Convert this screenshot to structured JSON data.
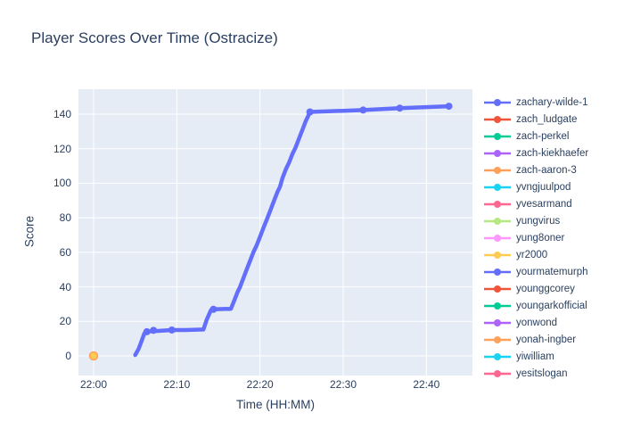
{
  "title": "Player Scores Over Time (Ostracize)",
  "colors": {
    "background": "#ffffff",
    "plot_background": "#E5ECF6",
    "gridline": "#ffffff",
    "text": "#2a3f5f",
    "primary_series": "#636EFA"
  },
  "chart_data": {
    "type": "line",
    "title": "Player Scores Over Time (Ostracize)",
    "xlabel": "Time (HH:MM)",
    "ylabel": "Score",
    "x_unit": "minutes after 22:00",
    "x_ticks": [
      {
        "minutes": 0,
        "label": "22:00"
      },
      {
        "minutes": 10,
        "label": "22:10"
      },
      {
        "minutes": 20,
        "label": "22:20"
      },
      {
        "minutes": 30,
        "label": "22:30"
      },
      {
        "minutes": 40,
        "label": "22:40"
      }
    ],
    "y_ticks": [
      0,
      20,
      40,
      60,
      80,
      100,
      120,
      140
    ],
    "xlim_minutes": [
      -1.8,
      45.5
    ],
    "ylim": [
      -11.4,
      154.4
    ],
    "grid": true,
    "legend_position": "right",
    "players": [
      {
        "label": "zachary-wilde-1",
        "color": "#636EFA",
        "points": [
          [
            5.0,
            0.5
          ],
          [
            5.4,
            4
          ],
          [
            5.8,
            9
          ],
          [
            6.1,
            13
          ],
          [
            6.4,
            14
          ],
          [
            7.0,
            14.3
          ],
          [
            7.2,
            14.8
          ],
          [
            7.5,
            14.4
          ],
          [
            9.4,
            15
          ],
          [
            11.0,
            15
          ],
          [
            13.2,
            15.3
          ],
          [
            13.6,
            21
          ],
          [
            14.1,
            26.5
          ],
          [
            14.4,
            27
          ],
          [
            16.5,
            27.3
          ],
          [
            16.9,
            32
          ],
          [
            17.3,
            37
          ],
          [
            17.6,
            40
          ],
          [
            18.0,
            45
          ],
          [
            18.4,
            50
          ],
          [
            18.8,
            55
          ],
          [
            19.2,
            60
          ],
          [
            19.6,
            64
          ],
          [
            20.0,
            69
          ],
          [
            20.4,
            74
          ],
          [
            20.9,
            80
          ],
          [
            21.3,
            85
          ],
          [
            21.7,
            90
          ],
          [
            22.1,
            95
          ],
          [
            22.4,
            98
          ],
          [
            22.7,
            103
          ],
          [
            23.1,
            108
          ],
          [
            23.5,
            112
          ],
          [
            23.9,
            117
          ],
          [
            24.3,
            121
          ],
          [
            24.7,
            126
          ],
          [
            25.1,
            131
          ],
          [
            25.5,
            136
          ],
          [
            25.8,
            139
          ],
          [
            26.0,
            141.3
          ],
          [
            32.4,
            142.4
          ],
          [
            36.8,
            143.5
          ],
          [
            42.7,
            144.6
          ]
        ],
        "markers": [
          [
            6.4,
            14
          ],
          [
            7.2,
            14.8
          ],
          [
            9.4,
            15
          ],
          [
            14.4,
            27
          ],
          [
            26.0,
            141.3
          ],
          [
            32.4,
            142.4
          ],
          [
            36.8,
            143.5
          ],
          [
            42.7,
            144.6
          ]
        ]
      },
      {
        "label": "zach_ludgate",
        "color": "#EF553B"
      },
      {
        "label": "zach-perkel",
        "color": "#00CC96"
      },
      {
        "label": "zach-kiekhaefer",
        "color": "#AB63FA"
      },
      {
        "label": "zach-aaron-3",
        "color": "#FFA15A"
      },
      {
        "label": "yvngjuulpod",
        "color": "#19D3F3"
      },
      {
        "label": "yvesarmand",
        "color": "#FF6692"
      },
      {
        "label": "yungvirus",
        "color": "#B6E880"
      },
      {
        "label": "yung8oner",
        "color": "#FF97FF"
      },
      {
        "label": "yr2000",
        "color": "#FECB52"
      },
      {
        "label": "yourmatemurph",
        "color": "#636EFA"
      },
      {
        "label": "younggcorey",
        "color": "#EF553B"
      },
      {
        "label": "youngarkofficial",
        "color": "#00CC96"
      },
      {
        "label": "yonwond",
        "color": "#AB63FA"
      },
      {
        "label": "yonah-ingber",
        "color": "#FFA15A"
      },
      {
        "label": "yiwilliam",
        "color": "#19D3F3"
      },
      {
        "label": "yesitslogan",
        "color": "#FF6692"
      }
    ],
    "zero_point": {
      "minutes": 0,
      "score": 0,
      "fill": "#FECB52",
      "stroke": "#FFA15A"
    }
  }
}
